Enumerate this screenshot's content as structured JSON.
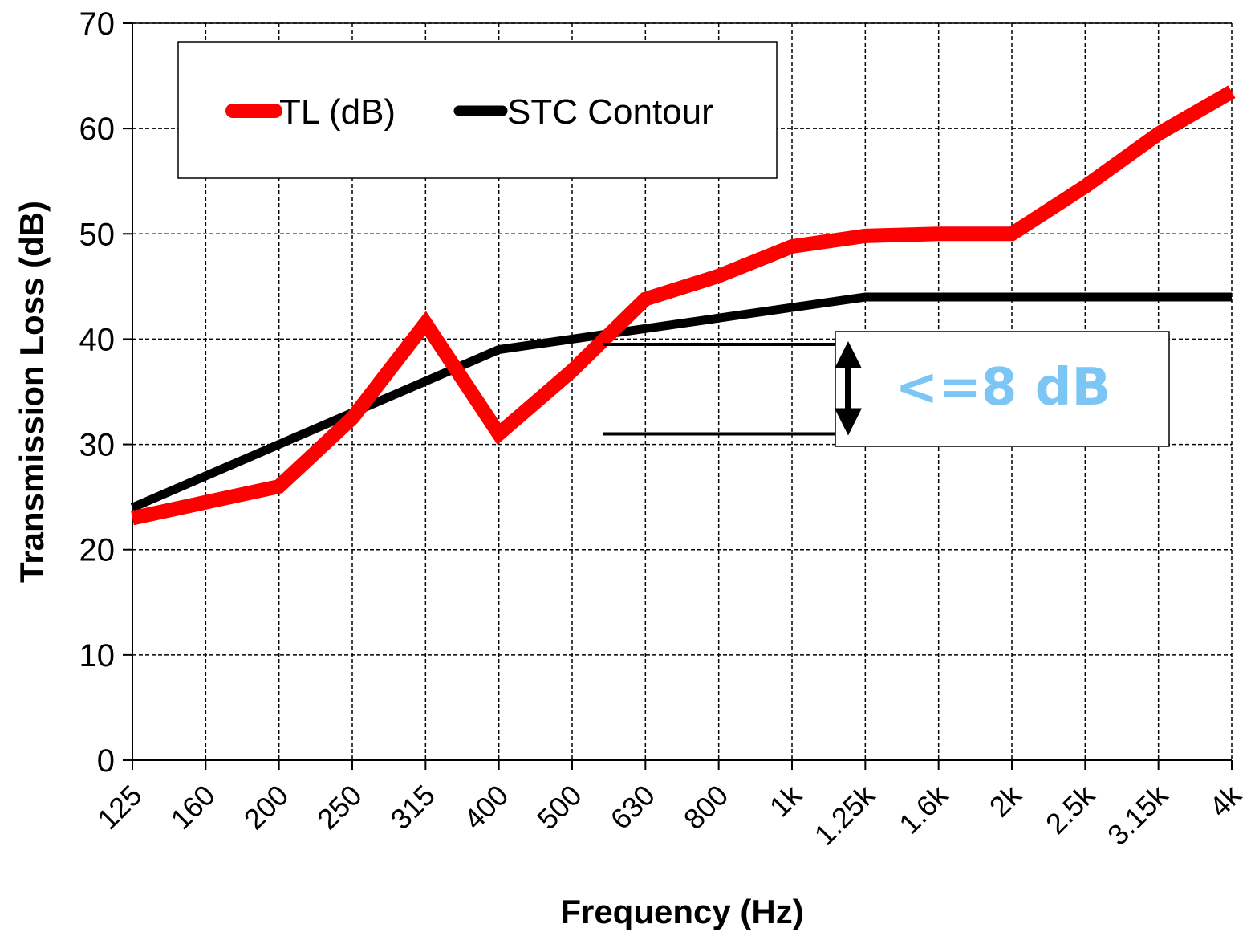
{
  "chart_data": {
    "type": "line",
    "title": "",
    "xlabel": "Frequency (Hz)",
    "ylabel": "Transmission Loss (dB)",
    "ylim": [
      0,
      70
    ],
    "yticks": [
      0,
      10,
      20,
      30,
      40,
      50,
      60,
      70
    ],
    "grid": true,
    "legend_position": "top-left",
    "categories": [
      "125",
      "160",
      "200",
      "250",
      "315",
      "400",
      "500",
      "630",
      "800",
      "1k",
      "1.25k",
      "1.6k",
      "2k",
      "2.5k",
      "3.15k",
      "4k"
    ],
    "series": [
      {
        "name": "TL (dB)",
        "color": "#ff0000",
        "values": [
          23,
          24.5,
          26,
          32.5,
          41.5,
          31,
          37,
          43.8,
          46,
          48.8,
          49.8,
          50,
          50,
          54.5,
          59.5,
          63.5
        ]
      },
      {
        "name": "STC Contour",
        "color": "#000000",
        "values": [
          24,
          27,
          30,
          33,
          36,
          39,
          40,
          41,
          42,
          43,
          44,
          44,
          44,
          44,
          44,
          44
        ]
      }
    ],
    "annotation": {
      "text": "<=8 dB",
      "color": "#7cc6f5",
      "upper_level": 39.5,
      "lower_level": 31
    }
  }
}
